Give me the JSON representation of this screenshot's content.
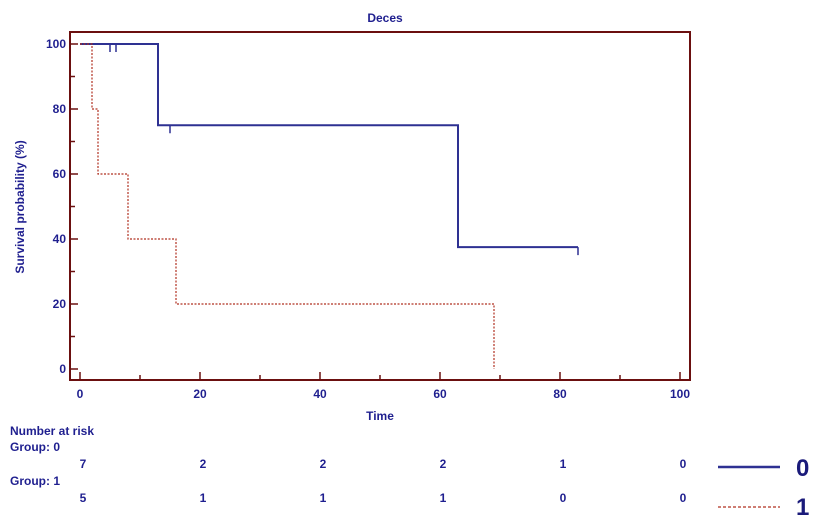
{
  "chart_data": {
    "type": "line",
    "title": "Deces",
    "xlabel": "Time",
    "ylabel": "Survival probability (%)",
    "xlim": [
      0,
      100
    ],
    "ylim": [
      0,
      100
    ],
    "xticks": [
      0,
      20,
      40,
      60,
      80,
      100
    ],
    "yticks": [
      0,
      20,
      40,
      60,
      80,
      100
    ],
    "grid": false,
    "legend_position": "bottom-right",
    "series": [
      {
        "name": "0",
        "color": "#2e3192",
        "line_style": "solid",
        "steps": [
          [
            0,
            100
          ],
          [
            13,
            100
          ],
          [
            13,
            75
          ],
          [
            63,
            75
          ],
          [
            63,
            37.5
          ],
          [
            83,
            37.5
          ]
        ],
        "censored": [
          [
            5,
            100
          ],
          [
            6,
            100
          ],
          [
            15,
            75
          ],
          [
            83,
            37.5
          ]
        ]
      },
      {
        "name": "1",
        "color": "#b03020",
        "line_style": "dashed",
        "steps": [
          [
            0,
            100
          ],
          [
            2,
            100
          ],
          [
            2,
            80
          ],
          [
            3,
            80
          ],
          [
            3,
            60
          ],
          [
            8,
            60
          ],
          [
            8,
            40
          ],
          [
            16,
            40
          ],
          [
            16,
            20
          ],
          [
            69,
            20
          ],
          [
            69,
            0
          ]
        ],
        "censored": []
      }
    ]
  },
  "risk_table": {
    "title": "Number at risk",
    "groups": [
      {
        "label": "Group: 0",
        "counts": [
          "7",
          "2",
          "2",
          "2",
          "1",
          "0"
        ]
      },
      {
        "label": "Group: 1",
        "counts": [
          "5",
          "1",
          "1",
          "1",
          "0",
          "0"
        ]
      }
    ]
  },
  "colors": {
    "axis": "#6b0f0f",
    "text": "#1f1f8f"
  }
}
